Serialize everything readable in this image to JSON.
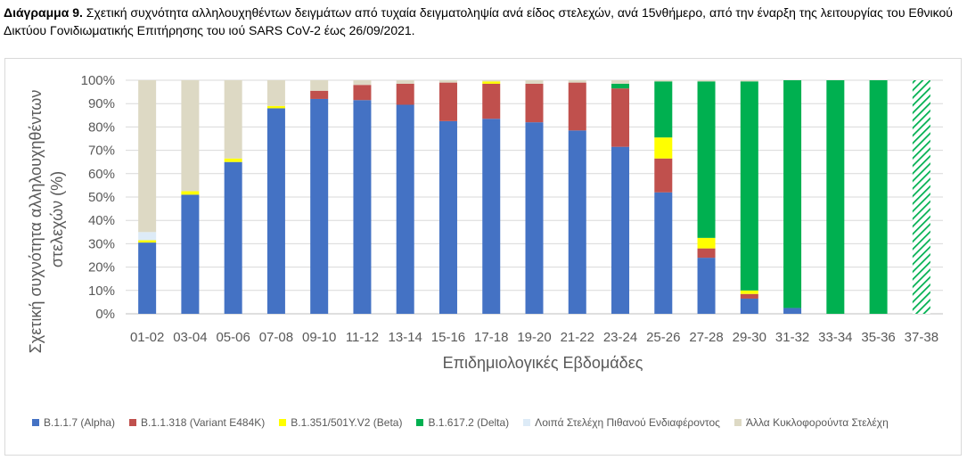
{
  "caption": {
    "lead": "Διάγραμμα 9.",
    "text": " Σχετική συχνότητα αλληλουχηθέντων δειγμάτων από τυχαία δειγματοληψία ανά είδος στελεχών, ανά 15νθήμερο, από την έναρξη της λειτουργίας του Εθνικού Δικτύου Γονιδιωματικής Επιτήρησης του ιού SARS CoV-2 έως 26/09/2021."
  },
  "chart_data": {
    "type": "bar",
    "stacked": true,
    "xlabel": "Επιδημιολογικές Εβδομάδες",
    "ylabel_lines": [
      "Σχετική συχνότητα αλληλουχηθέντων",
      "στελεχών (%)"
    ],
    "ylim": [
      0,
      100
    ],
    "yticks": [
      "0%",
      "10%",
      "20%",
      "30%",
      "40%",
      "50%",
      "60%",
      "70%",
      "80%",
      "90%",
      "100%"
    ],
    "grid": true,
    "legend_position": "bottom",
    "categories": [
      "01-02",
      "03-04",
      "05-06",
      "07-08",
      "09-10",
      "11-12",
      "13-14",
      "15-16",
      "17-18",
      "19-20",
      "21-22",
      "23-24",
      "25-26",
      "27-28",
      "29-30",
      "31-32",
      "33-34",
      "35-36",
      "37-38"
    ],
    "hatched_categories": [
      "37-38"
    ],
    "series": [
      {
        "name": "B.1.1.7 (Alpha)",
        "color": "#4472C4",
        "values": [
          30.5,
          51,
          65,
          88,
          92,
          91.5,
          89.5,
          82.5,
          83.5,
          82,
          78.5,
          71.5,
          52,
          24,
          6.5,
          2.5,
          0,
          0,
          0
        ]
      },
      {
        "name": "B.1.1.318 (Variant E484K)",
        "color": "#C0504D",
        "values": [
          0,
          0,
          0,
          0,
          3.5,
          6.5,
          9,
          16.5,
          15,
          16.5,
          20.5,
          25,
          14.5,
          4,
          2,
          0,
          0,
          0,
          0
        ]
      },
      {
        "name": "B.1.351/501Y.V2 (Beta)",
        "color": "#FFFF00",
        "values": [
          1,
          1.5,
          1.5,
          1,
          0,
          0,
          0,
          0,
          1,
          0,
          0,
          0,
          9,
          4.5,
          1.5,
          0,
          0,
          0,
          0
        ]
      },
      {
        "name": "B.1.617.2 (Delta)",
        "color": "#00B050",
        "values": [
          0,
          0,
          0,
          0,
          0,
          0,
          0,
          0,
          0,
          0,
          0,
          2,
          24,
          67,
          89.5,
          97.5,
          100,
          100,
          100
        ]
      },
      {
        "name": "Λοιπά Στελέχη Πιθανού Ενδιαφέροντος",
        "color": "#DDEBF7",
        "values": [
          3.5,
          0,
          0,
          0,
          0,
          0,
          0,
          0,
          0,
          0,
          0,
          0,
          0,
          0,
          0,
          0,
          0,
          0,
          0
        ]
      },
      {
        "name": "Άλλα Κυκλοφορούντα Στελέχη",
        "color": "#DDD9C4",
        "values": [
          65,
          47.5,
          33.5,
          11,
          4.5,
          2,
          1.5,
          1,
          0.5,
          1.5,
          1,
          1.5,
          0.5,
          0.5,
          0.5,
          0,
          0,
          0,
          0
        ]
      }
    ]
  }
}
